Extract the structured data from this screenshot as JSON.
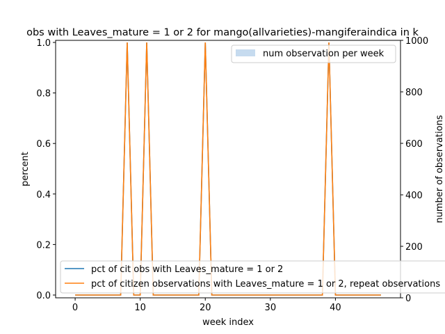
{
  "chart_data": {
    "type": "line",
    "title": "obs with Leaves_mature = 1 or 2 for mango(allvarieties)-mangiferaindica in k",
    "xlabel": "week index",
    "ylabel": "percent",
    "y2label": "number of observations",
    "xlim": [
      -3,
      50
    ],
    "ylim": [
      0,
      1
    ],
    "y2lim": [
      0,
      1000
    ],
    "xticks": [
      0,
      10,
      20,
      30,
      40
    ],
    "yticks": [
      "0.0",
      "0.2",
      "0.4",
      "0.6",
      "0.8",
      "1.0"
    ],
    "y2ticks": [
      "0",
      "200",
      "400",
      "600",
      "800",
      "1000"
    ],
    "x": [
      0,
      1,
      2,
      3,
      4,
      5,
      6,
      7,
      8,
      9,
      10,
      11,
      12,
      13,
      14,
      15,
      16,
      17,
      18,
      19,
      20,
      21,
      22,
      23,
      24,
      25,
      26,
      27,
      28,
      29,
      30,
      31,
      32,
      33,
      34,
      35,
      36,
      37,
      38,
      39,
      40,
      41,
      42,
      43,
      44,
      45,
      46,
      47
    ],
    "series": [
      {
        "name": "pct of cit obs with Leaves_mature = 1 or 2",
        "color": "#1f77b4",
        "values": [
          0,
          0,
          0,
          0,
          0,
          0,
          0,
          0,
          1,
          0,
          0,
          1,
          0,
          0,
          0,
          0,
          0,
          0,
          0,
          0,
          1,
          0,
          0,
          0,
          0,
          0,
          0,
          0,
          0,
          0,
          0,
          0,
          0,
          0,
          0,
          0,
          0,
          0,
          0,
          1,
          0,
          0,
          0,
          0,
          0,
          0,
          0,
          0
        ]
      },
      {
        "name": "pct of citizen observations with Leaves_mature = 1 or 2, repeat observations",
        "color": "#ff7f0e",
        "values": [
          0,
          0,
          0,
          0,
          0,
          0,
          0,
          0,
          1,
          0,
          0,
          1,
          0,
          0,
          0,
          0,
          0,
          0,
          0,
          0,
          1,
          0,
          0,
          0,
          0,
          0,
          0,
          0,
          0,
          0,
          0,
          0,
          0,
          0,
          0,
          0,
          0,
          0,
          0,
          1,
          0,
          0,
          0,
          0,
          0,
          0,
          0,
          0
        ]
      }
    ],
    "bar_series": {
      "name": "num observation per week",
      "color": "#c6dbef",
      "values": [
        0,
        0,
        0,
        0,
        0,
        0,
        0,
        0,
        1,
        0,
        0,
        1,
        0,
        0,
        0,
        0,
        0,
        0,
        0,
        0,
        1,
        0,
        0,
        0,
        0,
        0,
        0,
        0,
        0,
        0,
        0,
        0,
        0,
        0,
        0,
        0,
        0,
        0,
        0,
        1,
        0,
        0,
        0,
        0,
        0,
        0,
        0,
        0
      ]
    },
    "legend": {
      "upper_right": [
        "num observation per week"
      ],
      "lower_left": [
        "pct of cit obs with Leaves_mature = 1 or 2",
        "pct of citizen observations with Leaves_mature = 1 or 2, repeat observations"
      ]
    }
  }
}
